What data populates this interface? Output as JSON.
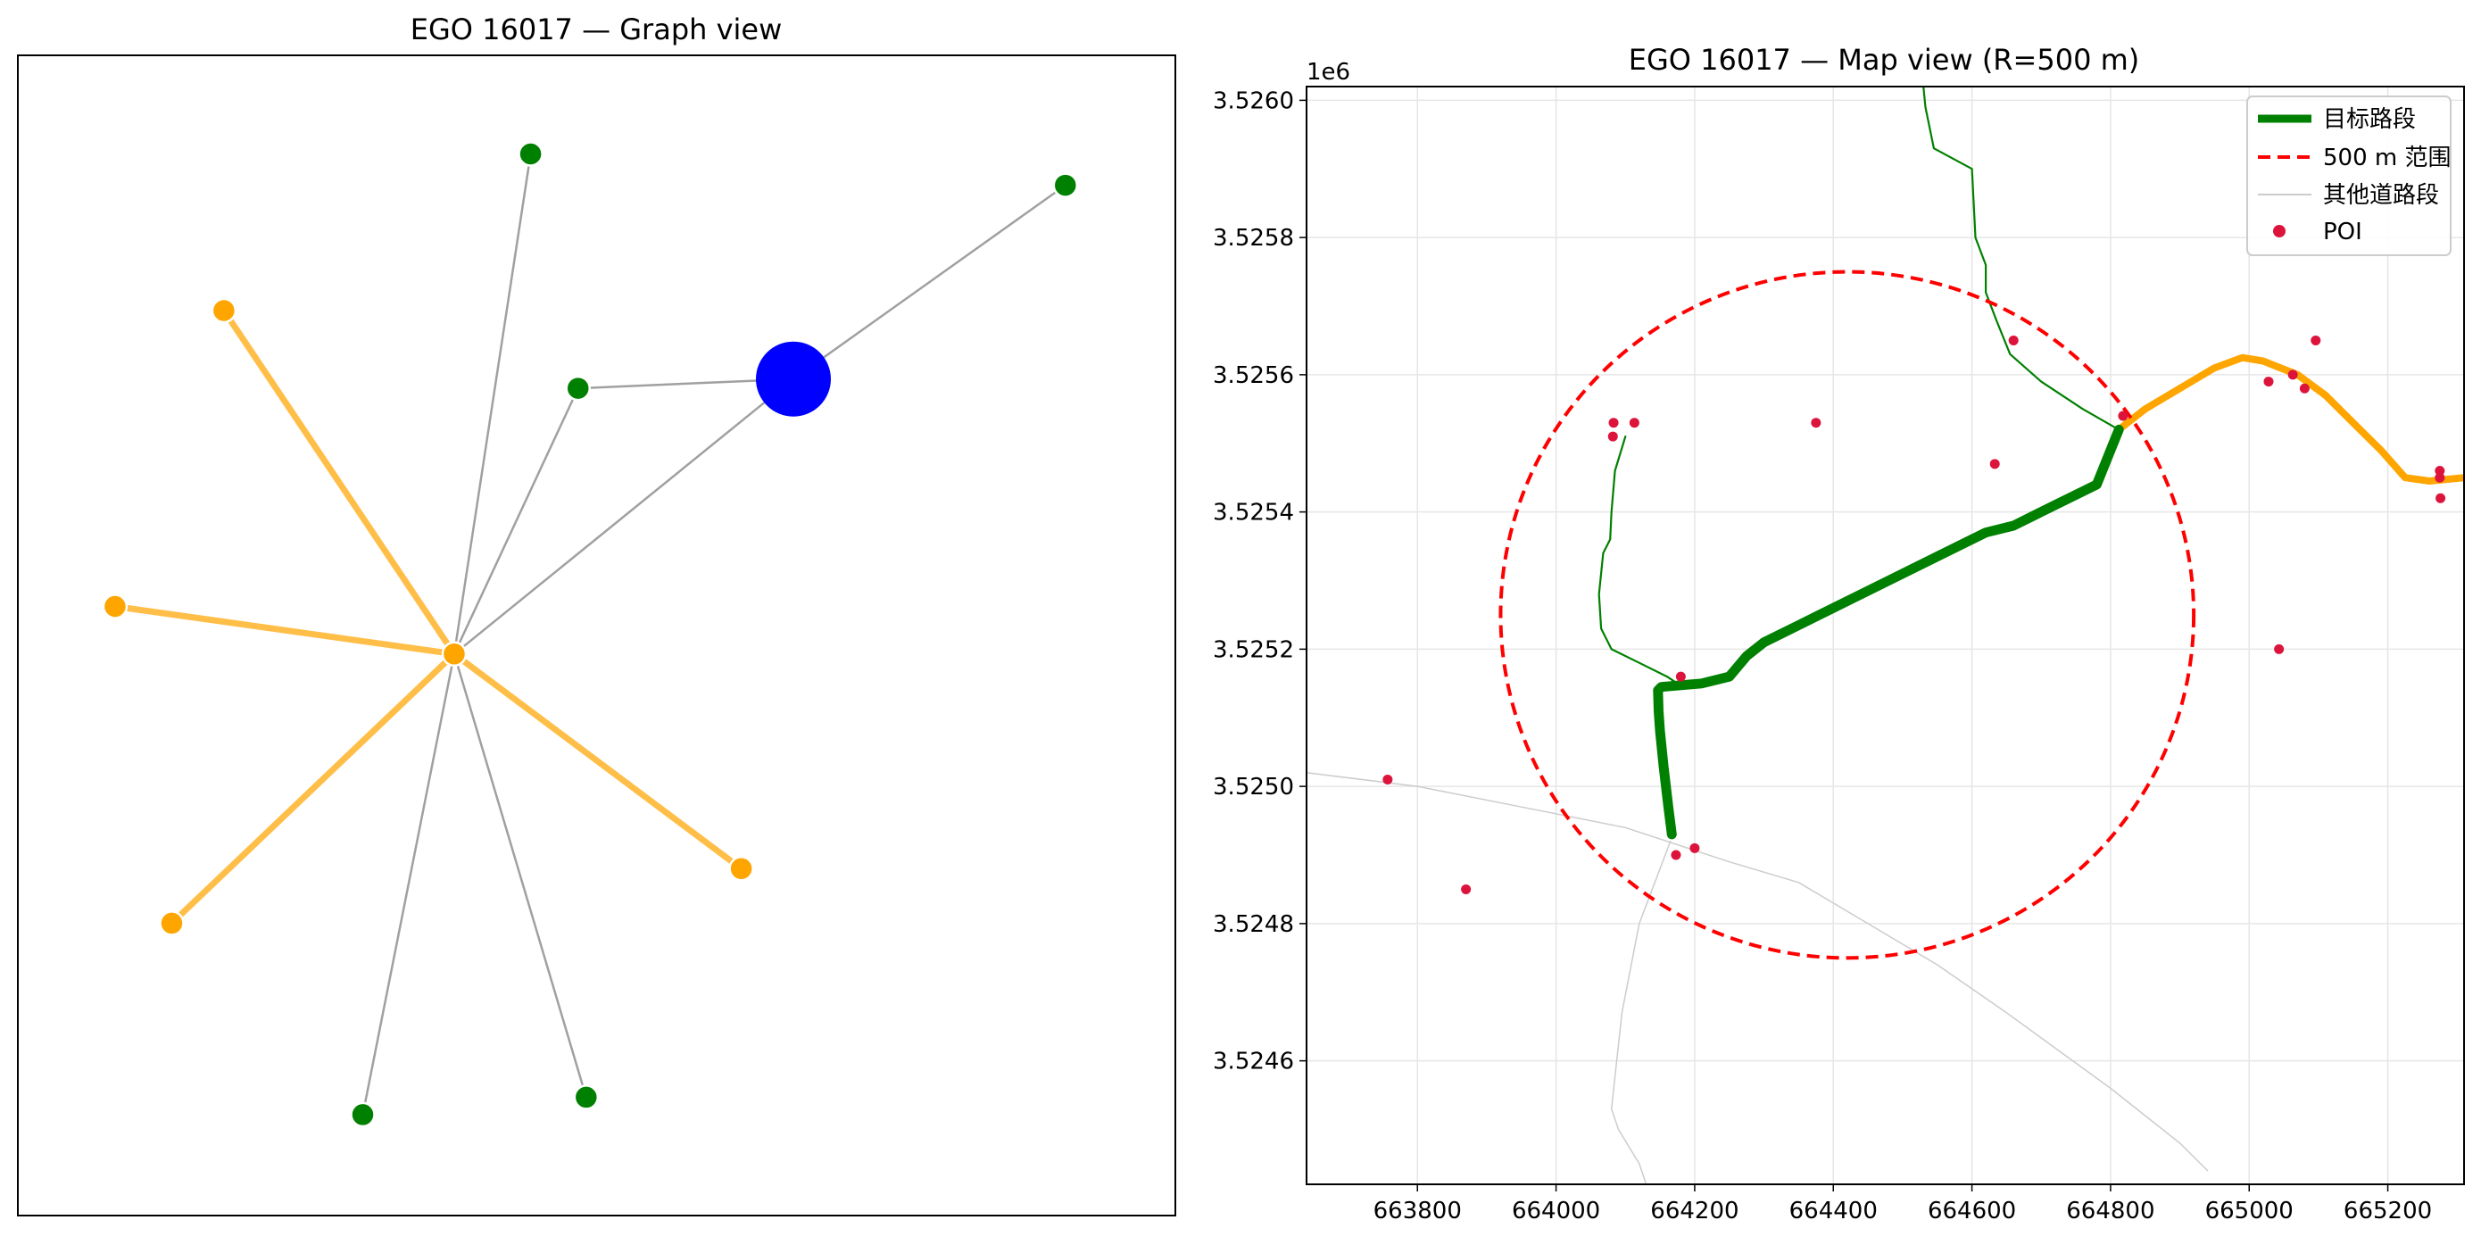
{
  "chart_data": [
    {
      "type": "scatter",
      "title": "EGO 16017 — Graph view",
      "nodes": [
        {
          "id": "ego",
          "role": "ego",
          "color": "#0000ff",
          "x": 0.67,
          "y": 0.721
        },
        {
          "id": "hub",
          "role": "hub",
          "color": "#ffa500",
          "x": 0.377,
          "y": 0.484
        },
        {
          "id": "g1",
          "role": "green",
          "color": "#008000",
          "x": 0.443,
          "y": 0.915
        },
        {
          "id": "g2",
          "role": "green",
          "color": "#008000",
          "x": 0.905,
          "y": 0.888
        },
        {
          "id": "g3",
          "role": "green",
          "color": "#008000",
          "x": 0.484,
          "y": 0.713
        },
        {
          "id": "g4",
          "role": "green",
          "color": "#008000",
          "x": 0.298,
          "y": 0.087
        },
        {
          "id": "g5",
          "role": "green",
          "color": "#008000",
          "x": 0.491,
          "y": 0.102
        },
        {
          "id": "o1",
          "role": "orange",
          "color": "#ffa500",
          "x": 0.178,
          "y": 0.78
        },
        {
          "id": "o2",
          "role": "orange",
          "color": "#ffa500",
          "x": 0.084,
          "y": 0.525
        },
        {
          "id": "o3",
          "role": "orange",
          "color": "#ffa500",
          "x": 0.133,
          "y": 0.252
        },
        {
          "id": "o4",
          "role": "orange",
          "color": "#ffa500",
          "x": 0.625,
          "y": 0.299
        }
      ],
      "edges": [
        {
          "from": "hub",
          "to": "ego",
          "style": "grey"
        },
        {
          "from": "ego",
          "to": "g2",
          "style": "grey"
        },
        {
          "from": "ego",
          "to": "g3",
          "style": "grey"
        },
        {
          "from": "hub",
          "to": "g5",
          "style": "grey"
        },
        {
          "from": "hub",
          "to": "g3",
          "style": "grey"
        },
        {
          "from": "hub",
          "to": "g1",
          "style": "grey"
        },
        {
          "from": "hub",
          "to": "g4",
          "style": "grey"
        },
        {
          "from": "hub",
          "to": "o1",
          "style": "orange"
        },
        {
          "from": "hub",
          "to": "o2",
          "style": "orange"
        },
        {
          "from": "hub",
          "to": "o3",
          "style": "orange"
        },
        {
          "from": "hub",
          "to": "o4",
          "style": "orange"
        }
      ]
    },
    {
      "type": "line",
      "title": "EGO 16017 — Map view (R=500 m)",
      "offset_label": "1e6",
      "xlim": [
        663640,
        665310
      ],
      "ylim": [
        3.52442,
        3.52602
      ],
      "xticks": [
        663800,
        664000,
        664200,
        664400,
        664600,
        664800,
        665000,
        665200
      ],
      "xtick_labels": [
        "663800",
        "664000",
        "664200",
        "664400",
        "664600",
        "664800",
        "665000",
        "665200"
      ],
      "yticks": [
        3.5246,
        3.5248,
        3.525,
        3.5252,
        3.5254,
        3.5256,
        3.5258,
        3.526
      ],
      "ytick_labels": [
        "3.5246",
        "3.5248",
        "3.5250",
        "3.5252",
        "3.5254",
        "3.5256",
        "3.5258",
        "3.5260"
      ],
      "grid": true,
      "legend_position": "top-right",
      "legend": [
        "目标路段",
        "500 m 范围",
        "其他道路段",
        "POI"
      ],
      "circle": {
        "center": [
          664420,
          3.52525
        ],
        "radius": 500,
        "color": "#ff0000"
      },
      "series": [
        {
          "role": "ego-road",
          "color": "#008000",
          "points": [
            [
              664167,
              3.52493
            ],
            [
              664162,
              3.52497
            ],
            [
              664155,
              3.52503
            ],
            [
              664150,
              3.52508
            ],
            [
              664148,
              3.52511
            ],
            [
              664147,
              3.52514
            ],
            [
              664152,
              3.525145
            ],
            [
              664210,
              3.52515
            ],
            [
              664250,
              3.52516
            ],
            [
              664275,
              3.52519
            ],
            [
              664300,
              3.52521
            ],
            [
              664350,
              3.525235
            ],
            [
              664450,
              3.525285
            ],
            [
              664550,
              3.525335
            ],
            [
              664620,
              3.52537
            ],
            [
              664660,
              3.52538
            ],
            [
              664700,
              3.5254
            ],
            [
              664780,
              3.52544
            ],
            [
              664812,
              3.52552
            ]
          ]
        },
        {
          "role": "orange-road",
          "color": "#ffa500",
          "points": [
            [
              664812,
              3.52552
            ],
            [
              664850,
              3.52555
            ],
            [
              664900,
              3.52558
            ],
            [
              664950,
              3.52561
            ],
            [
              664990,
              3.525625
            ],
            [
              665020,
              3.52562
            ],
            [
              665070,
              3.5256
            ],
            [
              665110,
              3.52557
            ],
            [
              665150,
              3.52553
            ],
            [
              665190,
              3.52549
            ],
            [
              665225,
              3.52545
            ],
            [
              665260,
              3.525445
            ],
            [
              665310,
              3.52545
            ]
          ]
        },
        {
          "role": "green-road",
          "color": "#008000",
          "points": [
            [
              664530,
              3.52602
            ],
            [
              664533,
              3.52599
            ],
            [
              664545,
              3.52593
            ],
            [
              664600,
              3.5259
            ],
            [
              664605,
              3.5258
            ],
            [
              664620,
              3.52576
            ],
            [
              664620,
              3.52572
            ],
            [
              664635,
              3.52568
            ],
            [
              664655,
              3.52563
            ],
            [
              664700,
              3.52559
            ],
            [
              664760,
              3.52555
            ],
            [
              664812,
              3.52552
            ]
          ]
        },
        {
          "role": "green-road",
          "color": "#008000",
          "points": [
            [
              664100,
              3.52551
            ],
            [
              664085,
              3.52546
            ],
            [
              664080,
              3.5254
            ],
            [
              664078,
              3.52536
            ],
            [
              664068,
              3.52534
            ],
            [
              664062,
              3.52528
            ],
            [
              664065,
              3.52523
            ],
            [
              664080,
              3.5252
            ],
            [
              664120,
              3.52518
            ],
            [
              664160,
              3.52516
            ],
            [
              664175,
              3.52515
            ]
          ]
        },
        {
          "role": "grey-road",
          "color": "#cccccc",
          "points": [
            [
              663640,
              3.52502
            ],
            [
              663800,
              3.525
            ],
            [
              663950,
              3.52497
            ],
            [
              664100,
              3.52494
            ],
            [
              664250,
              3.52489
            ],
            [
              664350,
              3.52486
            ],
            [
              664450,
              3.5248
            ],
            [
              664550,
              3.52474
            ],
            [
              664650,
              3.52467
            ],
            [
              664800,
              3.52456
            ],
            [
              664900,
              3.52448
            ],
            [
              664940,
              3.52444
            ]
          ]
        },
        {
          "role": "grey-road",
          "color": "#cccccc",
          "points": [
            [
              664165,
              3.52492
            ],
            [
              664150,
              3.52488
            ],
            [
              664120,
              3.5248
            ],
            [
              664095,
              3.52467
            ],
            [
              664080,
              3.52453
            ],
            [
              664090,
              3.5245
            ],
            [
              664120,
              3.52445
            ],
            [
              664130,
              3.52442
            ]
          ]
        }
      ],
      "poi": [
        [
          664818,
          3.52554
        ],
        [
          664660,
          3.52565
        ],
        [
          664633,
          3.52547
        ],
        [
          664375,
          3.52553
        ],
        [
          664083,
          3.52553
        ],
        [
          664082,
          3.52551
        ],
        [
          664113,
          3.52553
        ],
        [
          664180,
          3.52516
        ],
        [
          664200,
          3.52491
        ],
        [
          664173,
          3.5249
        ],
        [
          663870,
          3.52485
        ],
        [
          663757,
          3.52501
        ],
        [
          665028,
          3.52559
        ],
        [
          665063,
          3.5256
        ],
        [
          665080,
          3.52558
        ],
        [
          665096,
          3.52565
        ],
        [
          665043,
          3.5252
        ],
        [
          665275,
          3.52546
        ],
        [
          665275,
          3.52545
        ],
        [
          665276,
          3.52542
        ]
      ]
    }
  ]
}
